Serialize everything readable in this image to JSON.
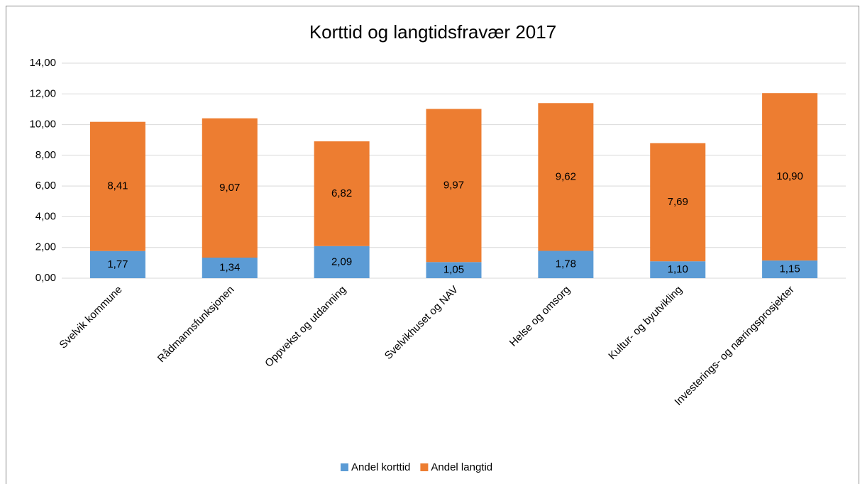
{
  "chart_data": {
    "type": "stacked_bar",
    "title": "Korttid og langtidsfravær 2017",
    "categories": [
      "Svelvik kommune",
      "Rådmannsfunksjonen",
      "Oppvekst og utdanning",
      "Svelvikhuset og NAV",
      "Helse og omsorg",
      "Kultur- og byutvikling",
      "Investerings- og næringsprosjekter"
    ],
    "series": [
      {
        "name": "Andel korttid",
        "color": "#5b9bd5",
        "values": [
          1.77,
          1.34,
          2.09,
          1.05,
          1.78,
          1.1,
          1.15
        ],
        "value_labels": [
          "1,77",
          "1,34",
          "2,09",
          "1,05",
          "1,78",
          "1,10",
          "1,15"
        ]
      },
      {
        "name": "Andel langtid",
        "color": "#ed7d31",
        "values": [
          8.41,
          9.07,
          6.82,
          9.97,
          9.62,
          7.69,
          10.9
        ],
        "value_labels": [
          "8,41",
          "9,07",
          "6,82",
          "9,97",
          "9,62",
          "7,69",
          "10,90"
        ]
      }
    ],
    "ylim": [
      0,
      14
    ],
    "yticks": [
      {
        "value": 0,
        "label": "0,00"
      },
      {
        "value": 2,
        "label": "2,00"
      },
      {
        "value": 4,
        "label": "4,00"
      },
      {
        "value": 6,
        "label": "6,00"
      },
      {
        "value": 8,
        "label": "8,00"
      },
      {
        "value": 10,
        "label": "10,00"
      },
      {
        "value": 12,
        "label": "12,00"
      },
      {
        "value": 14,
        "label": "14,00"
      }
    ],
    "grid": true,
    "legend": "bottom"
  }
}
